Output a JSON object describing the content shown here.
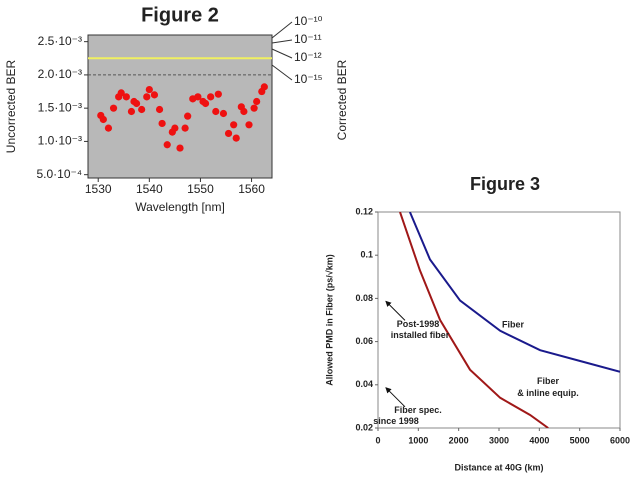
{
  "chart_data": [
    {
      "type": "scatter",
      "title": "Figure 2",
      "x_label": "Wavelength [nm]",
      "y_label": "Uncorrected BER",
      "y2_label": "Corrected BER",
      "x": [
        1530.5,
        1531,
        1532,
        1533,
        1534,
        1534.5,
        1535.5,
        1536.5,
        1537,
        1537.5,
        1538.5,
        1539.5,
        1540,
        1541,
        1542,
        1542.5,
        1543.5,
        1544.5,
        1545,
        1546,
        1547,
        1547.5,
        1548.5,
        1549.5,
        1550.5,
        1551,
        1552,
        1553,
        1553.5,
        1554.5,
        1555.5,
        1556.5,
        1557,
        1558,
        1558.5,
        1559.5,
        1560.5,
        1561,
        1562,
        1562.5
      ],
      "values": [
        0.00139,
        0.00133,
        0.0012,
        0.0015,
        0.00167,
        0.00173,
        0.00167,
        0.00145,
        0.0016,
        0.00157,
        0.00148,
        0.00167,
        0.00178,
        0.0017,
        0.00148,
        0.00127,
        0.00095,
        0.00114,
        0.0012,
        0.0009,
        0.0012,
        0.00138,
        0.00164,
        0.00167,
        0.0016,
        0.00157,
        0.00167,
        0.00145,
        0.00171,
        0.00142,
        0.00112,
        0.00125,
        0.00105,
        0.00152,
        0.00145,
        0.00125,
        0.0015,
        0.0016,
        0.00175,
        0.00182
      ],
      "color": "#ee1111",
      "background": "#b8b8b8",
      "xlim": [
        1528,
        1564
      ],
      "ylim": [
        0.00045,
        0.0026
      ],
      "xticks": [
        1530,
        1540,
        1550,
        1560
      ],
      "yticks": [
        {
          "value": 0.0025,
          "label": "2.5·10⁻³"
        },
        {
          "value": 0.002,
          "label": "2.0·10⁻³"
        },
        {
          "value": 0.0015,
          "label": "1.5·10⁻³"
        },
        {
          "value": 0.001,
          "label": "1.0·10⁻³"
        },
        {
          "value": 0.0005,
          "label": "5.0·10⁻⁴"
        }
      ],
      "hlines": [
        {
          "value": 0.00225,
          "color": "#f0f060",
          "style": "solid"
        },
        {
          "value": 0.002,
          "color": "#555555",
          "style": "dashed"
        }
      ],
      "annotations": [
        "10⁻¹⁰",
        "10⁻¹¹",
        "10⁻¹²",
        "10⁻¹⁵"
      ]
    },
    {
      "type": "line",
      "title": "Figure 3",
      "x_label": "Distance at 40G (km)",
      "y_label": "Allowed PMD in Fiber (ps/√km)",
      "series": [
        {
          "name": "Fiber",
          "color": "#1a1a8c",
          "x": [
            790,
            1290,
            2035,
            3030,
            4020,
            5010,
            6000
          ],
          "values": [
            0.12,
            0.098,
            0.079,
            0.065,
            0.056,
            0.051,
            0.046
          ]
        },
        {
          "name": "Fiber & inline equip.",
          "color": "#a01818",
          "x": [
            545,
            1040,
            1540,
            2280,
            3030,
            3770,
            4220
          ],
          "values": [
            0.12,
            0.093,
            0.07,
            0.047,
            0.034,
            0.026,
            0.02
          ]
        }
      ],
      "xlim": [
        0,
        6000
      ],
      "ylim": [
        0.02,
        0.12
      ],
      "xticks": [
        0,
        1000,
        2000,
        3000,
        4000,
        5000,
        6000
      ],
      "yticks": [
        0.02,
        0.04,
        0.06,
        0.08,
        0.1,
        0.12
      ],
      "annotations": [
        [
          "Post-1998",
          "installed fiber"
        ],
        [
          "Fiber spec.",
          "since 1998"
        ]
      ]
    }
  ]
}
